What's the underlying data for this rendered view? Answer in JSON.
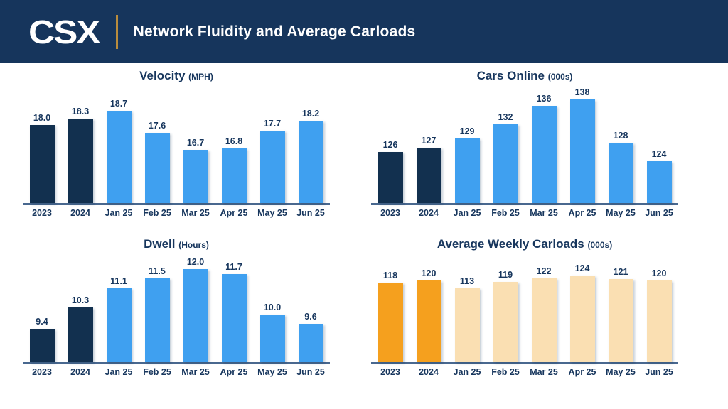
{
  "header": {
    "logo_text": "CSX",
    "title": "Network Fluidity and Average Carloads",
    "background_color": "#16355C",
    "divider_color": "#B98C3D"
  },
  "colors": {
    "navy_text": "#17365D",
    "dark_navy_bar": "#12304F",
    "light_blue_bar": "#3FA0F0",
    "orange_bar": "#F5A01E",
    "cream_bar": "#FADFB2",
    "axis_line": "#49688F"
  },
  "chart_data": [
    {
      "type": "bar",
      "title": "Velocity",
      "unit_label": "(MPH)",
      "categories": [
        "2023",
        "2024",
        "Jan 25",
        "Feb 25",
        "Mar 25",
        "Apr 25",
        "May 25",
        "Jun 25"
      ],
      "values": [
        18.0,
        18.3,
        18.7,
        17.6,
        16.7,
        16.8,
        17.7,
        18.2
      ],
      "value_labels": [
        "18.0",
        "18.3",
        "18.7",
        "17.6",
        "16.7",
        "16.8",
        "17.7",
        "18.2"
      ],
      "ylim": [
        14,
        19.9
      ],
      "highlight_count": 2,
      "highlight_color": "#12304F",
      "bar_color": "#3FA0F0",
      "xlabel": "",
      "ylabel": "",
      "grid": false,
      "legend": "none"
    },
    {
      "type": "bar",
      "title": "Cars Online",
      "unit_label": "(000s)",
      "categories": [
        "2023",
        "2024",
        "Jan 25",
        "Feb 25",
        "Mar 25",
        "Apr 25",
        "May 25",
        "Jun 25"
      ],
      "values": [
        126,
        127,
        129,
        132,
        136,
        138,
        128,
        124
      ],
      "value_labels": [
        "126",
        "127",
        "129",
        "132",
        "136",
        "138",
        "128",
        "124"
      ],
      "ylim": [
        115,
        140
      ],
      "highlight_count": 2,
      "highlight_color": "#12304F",
      "bar_color": "#3FA0F0",
      "xlabel": "",
      "ylabel": "",
      "grid": false,
      "legend": "none"
    },
    {
      "type": "bar",
      "title": "Dwell",
      "unit_label": "(Hours)",
      "categories": [
        "2023",
        "2024",
        "Jan 25",
        "Feb 25",
        "Mar 25",
        "Apr 25",
        "May 25",
        "Jun 25"
      ],
      "values": [
        9.4,
        10.3,
        11.1,
        11.5,
        12.0,
        11.7,
        10.0,
        9.6
      ],
      "value_labels": [
        "9.4",
        "10.3",
        "11.1",
        "11.5",
        "12.0",
        "11.7",
        "10.0",
        "9.6"
      ],
      "ylim": [
        8,
        12.4
      ],
      "highlight_count": 2,
      "highlight_color": "#12304F",
      "bar_color": "#3FA0F0",
      "xlabel": "",
      "ylabel": "",
      "grid": false,
      "legend": "none"
    },
    {
      "type": "bar",
      "title": "Average Weekly Carloads",
      "unit_label": "(000s)",
      "categories": [
        "2023",
        "2024",
        "Jan 25",
        "Feb 25",
        "Mar 25",
        "Apr 25",
        "May 25",
        "Jun 25"
      ],
      "values": [
        118,
        120,
        113,
        119,
        122,
        124,
        121,
        120
      ],
      "value_labels": [
        "118",
        "120",
        "113",
        "119",
        "122",
        "124",
        "121",
        "120"
      ],
      "ylim": [
        50,
        140
      ],
      "highlight_count": 2,
      "highlight_color": "#F5A01E",
      "bar_color": "#FADFB2",
      "xlabel": "",
      "ylabel": "",
      "grid": false,
      "legend": "none"
    }
  ]
}
